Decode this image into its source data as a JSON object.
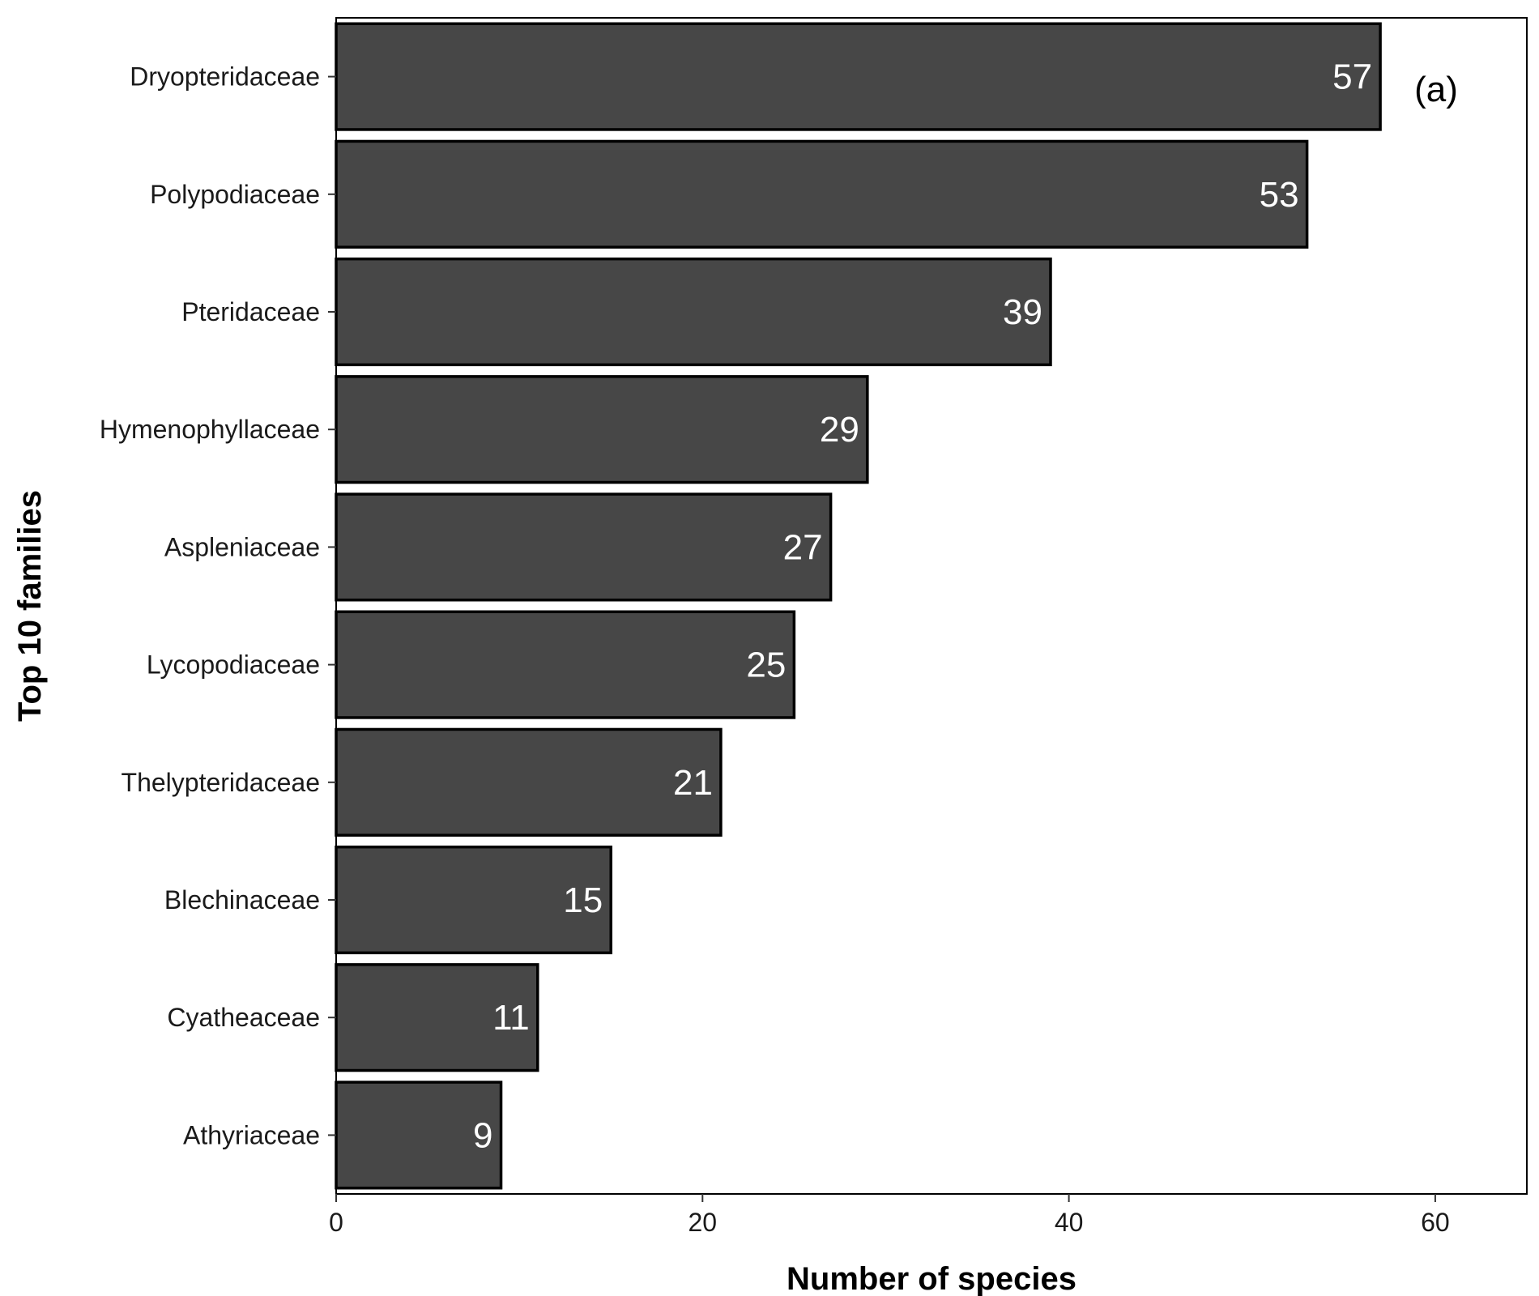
{
  "chart_data": {
    "type": "bar",
    "orientation": "horizontal",
    "categories": [
      "Dryopteridaceae",
      "Polypodiaceae",
      "Pteridaceae",
      "Hymenophyllaceae",
      "Aspleniaceae",
      "Lycopodiaceae",
      "Thelypteridaceae",
      "Blechinaceae",
      "Cyatheaceae",
      "Athyriaceae"
    ],
    "values": [
      57,
      53,
      39,
      29,
      27,
      25,
      21,
      15,
      11,
      9
    ],
    "data_labels": [
      "57",
      "53",
      "39",
      "29",
      "27",
      "25",
      "21",
      "15",
      "11",
      "9"
    ],
    "xlabel": "Number of species",
    "ylabel": "Top 10 families",
    "xlim": [
      0,
      65
    ],
    "xticks": [
      0,
      20,
      40,
      60
    ],
    "xtick_labels": [
      "0",
      "20",
      "40",
      "60"
    ],
    "panel_label": "(a)",
    "grid": false,
    "bar_fill": "#474747",
    "bar_stroke": "#000000",
    "data_label_color": "#ffffff"
  }
}
